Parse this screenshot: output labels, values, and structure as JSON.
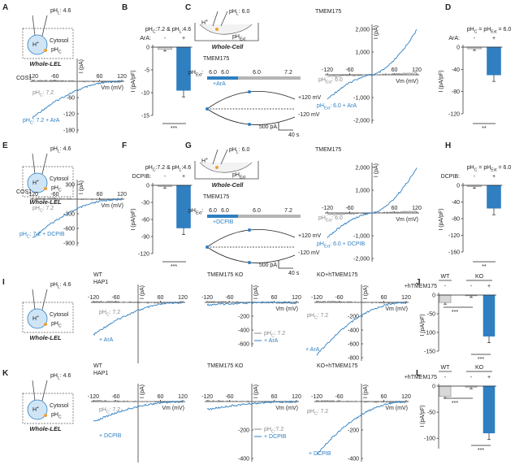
{
  "A": {
    "label": "A",
    "pipette_ph": [
      "pH",
      {
        "sub": "L"
      },
      ": 4.6"
    ],
    "ion": [
      "H",
      {
        "sup": "+"
      }
    ],
    "compartment": "Cytosol",
    "cyto_ph": [
      "pH",
      {
        "sub": "C"
      }
    ],
    "config": "Whole-LEL",
    "cell": "COS1",
    "iv": {
      "xticks": [
        "-120",
        "-60",
        "60",
        "120"
      ],
      "xlabel": "Vm (mV)",
      "ylabel": "I (pA)",
      "yticks_up": [],
      "yticks_down": [
        "-60",
        "-120",
        "-180"
      ],
      "legend": [
        [
          "pH",
          {
            "sub": "C"
          },
          ": 7.2"
        ],
        [
          "pH",
          {
            "sub": "C"
          },
          ": 7.2 + ArA"
        ]
      ]
    }
  },
  "B": {
    "label": "B",
    "title": [
      "pH",
      {
        "sub": "C"
      },
      ":7.2 & pH",
      {
        "sub": "L"
      },
      ":4.6"
    ],
    "drug": "ArA:",
    "conditions": [
      "-",
      "+"
    ],
    "ylabel": "I (pA/pF)",
    "ylim": [
      -15,
      0
    ],
    "yticks": [
      0,
      -5,
      -10,
      -15
    ],
    "values": [
      -0.5,
      -9.5
    ],
    "significance": "***"
  },
  "C": {
    "label": "C",
    "ion": [
      "H",
      {
        "sup": "+"
      }
    ],
    "pipette_ph": [
      "pH",
      {
        "sub": "L"
      },
      ": 6.0"
    ],
    "bath": [
      "pH",
      {
        "sub": "Ext"
      }
    ],
    "config": "Whole-Cell",
    "protein": "TMEM175",
    "protocol_label": [
      "pH",
      {
        "sub": "Ext"
      },
      ":"
    ],
    "protocol_steps": [
      "6.0",
      "6.0",
      "6.0",
      "7.2"
    ],
    "drug": "+ArA",
    "ramp_labels": [
      "+120 mV",
      "-120 mV"
    ],
    "scale": [
      "500 pA",
      "40 s"
    ],
    "iv": {
      "title": "TMEM175",
      "xticks": [
        "-120",
        "-60",
        "60",
        "120"
      ],
      "xlabel": "Vm (mV)",
      "ylabel": "I (pA)",
      "yticks_up": [
        "2,000",
        "1,000"
      ],
      "yticks_down": [
        "-1,000",
        "-2,000"
      ],
      "legend": [
        [
          "pH",
          {
            "sub": "Ext"
          },
          ": 6.0"
        ],
        [
          "pH",
          {
            "sub": "Ext"
          },
          ": 6.0 + ArA"
        ]
      ]
    }
  },
  "D": {
    "label": "D",
    "title": [
      "pH",
      {
        "sub": "C"
      },
      " = pH",
      {
        "sub": "Ext"
      },
      " = 6.0"
    ],
    "drug": "ArA:",
    "conditions": [
      "-",
      "+"
    ],
    "ylabel": "I (pA/pF)",
    "ylim": [
      -120,
      0
    ],
    "yticks": [
      0,
      -40,
      -80,
      -120
    ],
    "values": [
      -3,
      -50
    ],
    "significance": "**"
  },
  "E": {
    "label": "E",
    "pipette_ph": [
      "pH",
      {
        "sub": "L"
      },
      ": 4.6"
    ],
    "ion": [
      "H",
      {
        "sup": "+"
      }
    ],
    "compartment": "Cytosol",
    "cyto_ph": [
      "pH",
      {
        "sub": "C"
      }
    ],
    "config": "Whole-LEL",
    "cell": "COS1",
    "iv": {
      "xticks": [
        "-120",
        "-60",
        "60",
        "120"
      ],
      "xlabel": "Vm (mV)",
      "ylabel": "I (pA)",
      "yticks_up": [
        "300"
      ],
      "yticks_down": [
        "-300",
        "-600",
        "-900"
      ],
      "legend": [
        [
          "pH",
          {
            "sub": "C"
          },
          ": 7.2"
        ],
        [
          "pH",
          {
            "sub": "C"
          },
          ": 7.2 + DCPIB"
        ]
      ]
    }
  },
  "F": {
    "label": "F",
    "title": [
      "pH",
      {
        "sub": "C"
      },
      ":7.2 & pH",
      {
        "sub": "L"
      },
      ":4.6"
    ],
    "drug": "DCPIB:",
    "conditions": [
      "-",
      "+"
    ],
    "ylabel": "I (pA/pF)",
    "ylim": [
      -120,
      0
    ],
    "yticks": [
      0,
      -30,
      -60,
      -90,
      -120
    ],
    "values": [
      -2,
      -75
    ],
    "significance": "***"
  },
  "G": {
    "label": "G",
    "ion": [
      "H",
      {
        "sup": "+"
      }
    ],
    "pipette_ph": [
      "pH",
      {
        "sub": "L"
      },
      ": 6.0"
    ],
    "bath": [
      "pH",
      {
        "sub": "Ext"
      }
    ],
    "config": "Whole-Cell",
    "protein": "TMEM175",
    "protocol_label": [
      "pH",
      {
        "sub": "Ext"
      },
      ":"
    ],
    "protocol_steps": [
      "6.0",
      "6.0",
      "6.0",
      "7.2"
    ],
    "drug": "+DCPIB",
    "ramp_labels": [
      "+120 mV",
      "-120 mV"
    ],
    "scale": [
      "500 pA",
      "40 s"
    ],
    "iv": {
      "title": "TMEM175",
      "xticks": [
        "-120",
        "-60",
        "60",
        "120"
      ],
      "xlabel": "Vm (mV)",
      "ylabel": "I (pA)",
      "yticks_up": [
        "2,000",
        "1,000"
      ],
      "yticks_down": [
        "-1,000",
        "-2,000"
      ],
      "legend": [
        [
          "pH",
          {
            "sub": "Ext"
          },
          ": 6.0"
        ],
        [
          "pH",
          {
            "sub": "Ext"
          },
          ": 6.0 + DCPIB"
        ]
      ]
    }
  },
  "H": {
    "label": "H",
    "title": [
      "pH",
      {
        "sub": "C"
      },
      " = pH",
      {
        "sub": "Ext"
      },
      " = 6.0"
    ],
    "drug": "DCPIB:",
    "conditions": [
      "-",
      "+"
    ],
    "ylabel": "I (pA/pF)",
    "ylim": [
      -160,
      0
    ],
    "yticks": [
      0,
      -40,
      -80,
      -120,
      -160
    ],
    "values": [
      -3,
      -55
    ],
    "significance": "**"
  },
  "I": {
    "label": "I",
    "pipette_ph": [
      "pH",
      {
        "sub": "L"
      },
      ": 4.6"
    ],
    "ion": [
      "H",
      {
        "sup": "+"
      }
    ],
    "compartment": "Cytosol",
    "cyto_ph": [
      "pH",
      {
        "sub": "C"
      }
    ],
    "config": "Whole-LEL",
    "plots": [
      {
        "title": "WT",
        "subtitle": "HAP1",
        "iv": {
          "xticks": [
            "-120",
            "-60",
            "60",
            "120"
          ],
          "ylabel": "I (pA)",
          "yticks_up": [],
          "yticks_down": [],
          "legend": [
            [
              "pH",
              {
                "sub": "C"
              },
              ": 7.2"
            ],
            "+ ArA"
          ]
        }
      },
      {
        "title": "TMEM175 KO",
        "iv": {
          "xticks": [
            "-120",
            "-60",
            "60",
            "120"
          ],
          "xlabel": "Vm (mV)",
          "ylabel": "I (pA)",
          "yticks_up": [],
          "yticks_down": [
            "-200",
            "-400",
            "-600"
          ],
          "legend": [
            [
              "pH",
              {
                "sub": "C"
              },
              ": 7.2"
            ],
            "+ ArA"
          ]
        }
      },
      {
        "title": "KO+hTMEM175",
        "iv": {
          "xticks": [
            "-120",
            "-60",
            "60",
            "120"
          ],
          "xlabel": "Vm (mV)",
          "ylabel": "I (pA)",
          "yticks_up": [],
          "yticks_down": [
            "-200",
            "-400",
            "-600",
            "-800"
          ],
          "legend": [
            [
              "pH",
              {
                "sub": "C"
              },
              ": 7.2"
            ],
            "+ ArA"
          ]
        }
      }
    ]
  },
  "J": {
    "label": "J",
    "groups": [
      "WT",
      "KO"
    ],
    "rescue_label": "+hTMEM175",
    "conditions": [
      "-",
      "-",
      "+"
    ],
    "ylabel": "I (pA/pF)",
    "ylim": [
      -150,
      0
    ],
    "yticks": [
      0,
      -50,
      -100,
      -150
    ],
    "values": [
      -20,
      -2,
      -110
    ],
    "significance": [
      "***",
      "***"
    ]
  },
  "K": {
    "label": "K",
    "pipette_ph": [
      "pH",
      {
        "sub": "L"
      },
      ": 4.6"
    ],
    "ion": [
      "H",
      {
        "sup": "+"
      }
    ],
    "compartment": "Cytosol",
    "cyto_ph": [
      "pH",
      {
        "sub": "C"
      }
    ],
    "config": "Whole-LEL",
    "plots": [
      {
        "title": "WT",
        "subtitle": "HAP1",
        "iv": {
          "xticks": [
            "-120",
            "-60",
            "60",
            "120"
          ],
          "xlabel": "Vm (mV)",
          "ylabel": "I (pA)",
          "yticks_up": [],
          "yticks_down": [],
          "legend": [
            [
              "pH",
              {
                "sub": "C"
              },
              ": 7.2"
            ],
            "+ DCPIB"
          ]
        }
      },
      {
        "title": "TMEM175 KO",
        "iv": {
          "xticks": [
            "-120",
            "-60",
            "60",
            "120"
          ],
          "xlabel": "Vm (mV)",
          "ylabel": "I (pA)",
          "yticks_up": [],
          "yticks_down": [
            "-200",
            "-400"
          ],
          "legend": [
            [
              "pH",
              {
                "sub": "C"
              },
              ":7.2"
            ],
            "+ DCPIB"
          ]
        }
      },
      {
        "title": "KO+hTMEM175",
        "iv": {
          "xticks": [
            "-120",
            "-60",
            "60",
            "120"
          ],
          "xlabel": "Vm (mV)",
          "ylabel": "I (pA)",
          "yticks_up": [],
          "yticks_down": [
            "-200",
            "-400"
          ],
          "legend": [
            [
              "pH",
              {
                "sub": "C"
              },
              ": 7.2"
            ],
            "+ DCPIB"
          ]
        }
      }
    ]
  },
  "L": {
    "label": "L",
    "groups": [
      "WT",
      "KO"
    ],
    "rescue_label": "+hTMEM175",
    "conditions": [
      "-",
      "-",
      "+"
    ],
    "ylabel": "I (pA/pF)",
    "ylim": [
      -120,
      0
    ],
    "yticks": [
      0,
      -50,
      -100
    ],
    "values": [
      -20,
      -2,
      -90
    ],
    "significance": [
      "***",
      "***"
    ]
  }
}
